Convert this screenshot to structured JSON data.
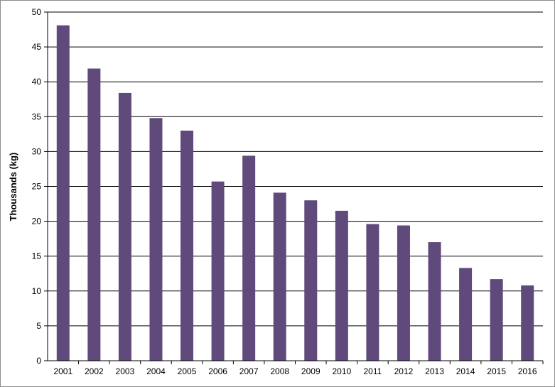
{
  "chart_data": {
    "type": "bar",
    "title": "",
    "xlabel": "",
    "ylabel": "Thousands (kg)",
    "ylim": [
      0,
      50
    ],
    "yticks": [
      0,
      5,
      10,
      15,
      20,
      25,
      30,
      35,
      40,
      45,
      50
    ],
    "grid": true,
    "legend": "none",
    "categories": [
      "2001",
      "2002",
      "2003",
      "2004",
      "2005",
      "2006",
      "2007",
      "2008",
      "2009",
      "2010",
      "2011",
      "2012",
      "2013",
      "2014",
      "2015",
      "2016"
    ],
    "values": [
      48.1,
      41.9,
      38.4,
      34.8,
      33.0,
      25.7,
      29.4,
      24.1,
      23.0,
      21.5,
      19.6,
      19.4,
      17.0,
      13.3,
      11.7,
      10.8
    ],
    "bar_color": "#604a7b"
  }
}
